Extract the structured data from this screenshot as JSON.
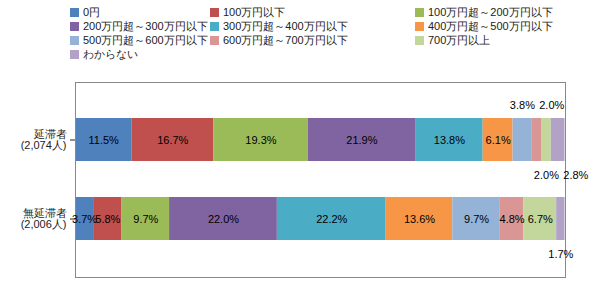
{
  "chart_data": {
    "type": "bar",
    "orientation": "horizontal",
    "stacked": true,
    "data_labels": true,
    "tick_labels": "y",
    "legend": "top",
    "categories": [
      "延滞者\n(2,074人)",
      "無延滞者\n(2,006人)"
    ],
    "xlim": [
      0,
      100
    ],
    "series": [
      {
        "name": "0円",
        "color": "#4F81BD",
        "values": [
          11.5,
          3.7
        ],
        "value_labels": [
          "11.5%",
          "3.7%"
        ]
      },
      {
        "name": "100万円以下",
        "color": "#C0504D",
        "values": [
          16.7,
          5.8
        ],
        "value_labels": [
          "16.7%",
          "5.8%"
        ]
      },
      {
        "name": "100万円超～200万円以下",
        "color": "#9BBB59",
        "values": [
          19.3,
          9.7
        ],
        "value_labels": [
          "19.3%",
          "9.7%"
        ]
      },
      {
        "name": "200万円超～300万円以下",
        "color": "#8064A2",
        "values": [
          21.9,
          22.0
        ],
        "value_labels": [
          "21.9%",
          "22.0%"
        ]
      },
      {
        "name": "300万円超～400万円以下",
        "color": "#4BACC6",
        "values": [
          13.8,
          22.2
        ],
        "value_labels": [
          "13.8%",
          "22.2%"
        ]
      },
      {
        "name": "400万円超～500万円以下",
        "color": "#F79646",
        "values": [
          6.1,
          13.6
        ],
        "value_labels": [
          "6.1%",
          "13.6%"
        ]
      },
      {
        "name": "500万円超～600万円以下",
        "color": "#95B3D7",
        "values": [
          3.8,
          9.7
        ],
        "value_labels": [
          "3.8%",
          "9.7%"
        ]
      },
      {
        "name": "600万円超～700万円以下",
        "color": "#D99694",
        "values": [
          2.0,
          4.8
        ],
        "value_labels": [
          "2.0%",
          "4.8%"
        ]
      },
      {
        "name": "700万円以上",
        "color": "#C3D69B",
        "values": [
          2.0,
          6.7
        ],
        "value_labels": [
          "2.0%",
          "6.7%"
        ]
      },
      {
        "name": "わからない",
        "color": "#B3A2C7",
        "values": [
          2.8,
          1.7
        ],
        "value_labels": [
          "2.8%",
          "1.7%"
        ]
      }
    ]
  }
}
